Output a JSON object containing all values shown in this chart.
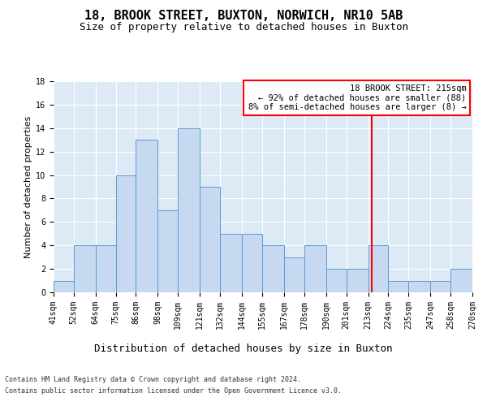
{
  "title": "18, BROOK STREET, BUXTON, NORWICH, NR10 5AB",
  "subtitle": "Size of property relative to detached houses in Buxton",
  "xlabel": "Distribution of detached houses by size in Buxton",
  "ylabel": "Number of detached properties",
  "bar_labels": [
    "41sqm",
    "52sqm",
    "64sqm",
    "75sqm",
    "86sqm",
    "98sqm",
    "109sqm",
    "121sqm",
    "132sqm",
    "144sqm",
    "155sqm",
    "167sqm",
    "178sqm",
    "190sqm",
    "201sqm",
    "213sqm",
    "224sqm",
    "235sqm",
    "247sqm",
    "258sqm",
    "270sqm"
  ],
  "bar_values": [
    1,
    4,
    4,
    10,
    13,
    7,
    14,
    9,
    5,
    5,
    4,
    3,
    4,
    2,
    2,
    4,
    1,
    1,
    1,
    2,
    0
  ],
  "bar_color": "#c6d9f0",
  "bar_edge_color": "#5b9bd5",
  "grid_color": "#ffffff",
  "bg_color": "#ddeaf6",
  "fig_bg_color": "#ffffff",
  "property_line_x": 215,
  "bin_edges": [
    41,
    52,
    64,
    75,
    86,
    98,
    109,
    121,
    132,
    144,
    155,
    167,
    178,
    190,
    201,
    213,
    224,
    235,
    247,
    258,
    270
  ],
  "annotation_line1": "18 BROOK STREET: 215sqm",
  "annotation_line2": "← 92% of detached houses are smaller (88)",
  "annotation_line3": "8% of semi-detached houses are larger (8) →",
  "footer1": "Contains HM Land Registry data © Crown copyright and database right 2024.",
  "footer2": "Contains public sector information licensed under the Open Government Licence v3.0.",
  "ylim": [
    0,
    18
  ],
  "yticks": [
    0,
    2,
    4,
    6,
    8,
    10,
    12,
    14,
    16,
    18
  ],
  "title_fontsize": 11,
  "subtitle_fontsize": 9,
  "xlabel_fontsize": 9,
  "ylabel_fontsize": 8,
  "annotation_fontsize": 7.5,
  "tick_fontsize": 7,
  "footer_fontsize": 6
}
